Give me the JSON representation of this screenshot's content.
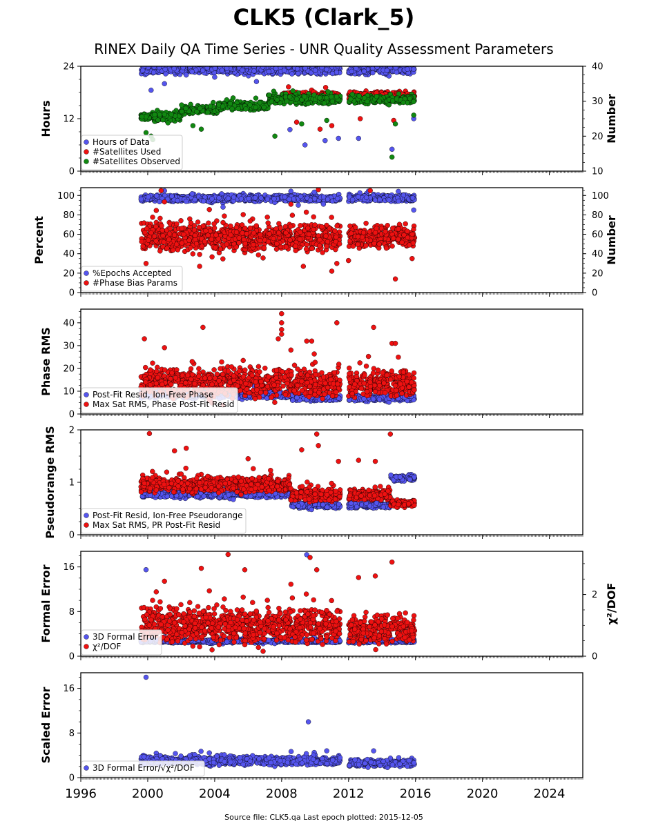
{
  "title": "CLK5 (Clark_5)",
  "subtitle": "RINEX Daily QA Time Series - UNR Quality Assessment Parameters",
  "footer": "Source file: CLK5.qa Last epoch plotted: 2015-12-05",
  "colors": {
    "blue": "#5555ee",
    "red": "#ee1111",
    "green": "#118811"
  },
  "chart_data": [
    {
      "type": "scatter",
      "panel": "hours",
      "ylabel": "Hours",
      "ylabel_right": "Number",
      "ylim": [
        0,
        24
      ],
      "yticks": [
        0,
        12,
        24
      ],
      "ylim_right": [
        10,
        40
      ],
      "yticks_right": [
        10,
        20,
        30,
        40
      ],
      "xlim": [
        1996,
        2026
      ],
      "legend_position": "lower-left",
      "series": [
        {
          "name": "Hours of Data",
          "color": "blue",
          "axis": "left",
          "segments": [
            {
              "x": [
                1999.6,
                2011.5
              ],
              "y_mean": 23.3,
              "spread": 1.0,
              "outliers": [
                [
                  2000.2,
                  18.5
                ],
                [
                  2001.0,
                  20.0
                ],
                [
                  2002.3,
                  22.0
                ],
                [
                  2004.0,
                  21.5
                ],
                [
                  2006.5,
                  20.5
                ],
                [
                  2008.5,
                  9.5
                ],
                [
                  2009.4,
                  6.0
                ],
                [
                  2010.6,
                  7.0
                ],
                [
                  2011.4,
                  7.5
                ],
                [
                  2003.0,
                  15.0
                ]
              ]
            },
            {
              "x": [
                2012.0,
                2015.95
              ],
              "y_mean": 23.3,
              "spread": 1.0,
              "outliers": [
                [
                  2012.6,
                  7.5
                ],
                [
                  2014.6,
                  5.0
                ],
                [
                  2015.9,
                  12.0
                ],
                [
                  2013.7,
                  18.0
                ]
              ]
            }
          ]
        },
        {
          "name": "#Satellites Used",
          "color": "red",
          "axis": "right",
          "segments": [
            {
              "x": [
                2008.0,
                2011.5
              ],
              "y_mean": 31.5,
              "spread": 1.0,
              "outliers": [
                [
                  2008.9,
                  24.0
                ],
                [
                  2010.3,
                  22.0
                ],
                [
                  2011.0,
                  23.0
                ]
              ]
            },
            {
              "x": [
                2012.0,
                2015.95
              ],
              "y_mean": 31.5,
              "spread": 1.0,
              "outliers": [
                [
                  2012.7,
                  25.0
                ],
                [
                  2014.7,
                  24.5
                ]
              ]
            }
          ]
        },
        {
          "name": "#Satellites Observed",
          "color": "green",
          "axis": "right",
          "segments": [
            {
              "x": [
                1999.6,
                2002.0
              ],
              "y_mean": 25.5,
              "spread": 1.2,
              "outliers": [
                [
                  2000.2,
                  20.0
                ],
                [
                  2000.3,
                  19.0
                ],
                [
                  1999.9,
                  21.0
                ]
              ]
            },
            {
              "x": [
                2002.0,
                2004.2
              ],
              "y_mean": 27.5,
              "spread": 1.0,
              "outliers": [
                [
                  2003.2,
                  22.0
                ],
                [
                  2002.7,
                  23.0
                ]
              ]
            },
            {
              "x": [
                2004.2,
                2007.2
              ],
              "y_mean": 28.5,
              "spread": 1.0,
              "outliers": []
            },
            {
              "x": [
                2007.2,
                2011.5
              ],
              "y_mean": 30.5,
              "spread": 1.2,
              "outliers": [
                [
                  2007.6,
                  20.0
                ],
                [
                  2009.2,
                  23.5
                ],
                [
                  2010.7,
                  24.5
                ]
              ]
            },
            {
              "x": [
                2012.0,
                2015.95
              ],
              "y_mean": 30.5,
              "spread": 1.0,
              "outliers": [
                [
                  2014.6,
                  14.0
                ],
                [
                  2014.8,
                  23.5
                ],
                [
                  2015.9,
                  26.0
                ]
              ]
            }
          ]
        }
      ]
    },
    {
      "type": "scatter",
      "panel": "percent",
      "ylabel": "Percent",
      "ylabel_right": "Number",
      "ylim": [
        0,
        108
      ],
      "yticks": [
        0,
        20,
        40,
        60,
        80,
        100
      ],
      "ylim_right": [
        0,
        108
      ],
      "yticks_right": [
        0,
        20,
        40,
        60,
        80,
        100
      ],
      "xlim": [
        1996,
        2026
      ],
      "legend_position": "lower-left",
      "series": [
        {
          "name": "%Epochs Accepted",
          "color": "blue",
          "axis": "left",
          "segments": [
            {
              "x": [
                1999.6,
                2011.5
              ],
              "y_mean": 97,
              "spread": 3,
              "outliers": [
                [
                  2004.5,
                  88
                ],
                [
                  2009.0,
                  90
                ],
                [
                  2010.5,
                  91
                ]
              ]
            },
            {
              "x": [
                2012.0,
                2015.95
              ],
              "y_mean": 97,
              "spread": 3,
              "outliers": [
                [
                  2015.9,
                  85
                ]
              ]
            }
          ]
        },
        {
          "name": "#Phase Bias Params",
          "color": "red",
          "axis": "right",
          "segments": [
            {
              "x": [
                1999.6,
                2011.5
              ],
              "y_mean": 57,
              "spread": 14,
              "outliers": [
                [
                  1999.9,
                  30
                ],
                [
                  2000.8,
                  105
                ],
                [
                  2003.1,
                  27
                ],
                [
                  2009.3,
                  27
                ],
                [
                  2010.2,
                  106
                ],
                [
                  2011.0,
                  22
                ],
                [
                  2011.3,
                  30
                ]
              ]
            },
            {
              "x": [
                2012.0,
                2015.95
              ],
              "y_mean": 57,
              "spread": 10,
              "outliers": [
                [
                  2012.0,
                  33
                ],
                [
                  2013.3,
                  105
                ],
                [
                  2014.8,
                  14
                ],
                [
                  2015.8,
                  35
                ]
              ]
            }
          ]
        }
      ]
    },
    {
      "type": "scatter",
      "panel": "phase",
      "ylabel": "Phase RMS",
      "ylim": [
        0,
        46
      ],
      "yticks": [
        0,
        10,
        20,
        30,
        40
      ],
      "xlim": [
        1996,
        2026
      ],
      "legend_position": "lower-left",
      "series": [
        {
          "name": "Post-Fit Resid, Ion-Free Phase",
          "color": "blue",
          "axis": "left",
          "segments": [
            {
              "x": [
                1999.6,
                2008.6
              ],
              "y_mean": 8.5,
              "spread": 1.5,
              "outliers": []
            },
            {
              "x": [
                2008.6,
                2011.5
              ],
              "y_mean": 7.0,
              "spread": 1.2,
              "outliers": []
            },
            {
              "x": [
                2012.0,
                2015.95
              ],
              "y_mean": 7.0,
              "spread": 1.2,
              "outliers": []
            }
          ]
        },
        {
          "name": "Max Sat RMS, Phase Post-Fit Resid",
          "color": "red",
          "axis": "left",
          "segments": [
            {
              "x": [
                1999.6,
                2011.5
              ],
              "y_mean": 13.5,
              "spread": 6,
              "outliers": [
                [
                  1999.8,
                  33
                ],
                [
                  2003.3,
                  38
                ],
                [
                  2007.8,
                  33
                ],
                [
                  2008.0,
                  44
                ],
                [
                  2008.0,
                  40
                ],
                [
                  2008.0,
                  37
                ],
                [
                  2008.0,
                  35
                ],
                [
                  2009.5,
                  32
                ],
                [
                  2009.8,
                  32
                ],
                [
                  2011.3,
                  40
                ]
              ]
            },
            {
              "x": [
                2012.0,
                2015.95
              ],
              "y_mean": 13.0,
              "spread": 5,
              "outliers": [
                [
                  2013.5,
                  38
                ],
                [
                  2014.6,
                  31
                ],
                [
                  2014.8,
                  31
                ]
              ]
            }
          ]
        }
      ]
    },
    {
      "type": "scatter",
      "panel": "pseudorange",
      "ylabel": "Pseudorange RMS",
      "ylim": [
        0,
        2
      ],
      "yticks": [
        0,
        1,
        2
      ],
      "xlim": [
        1996,
        2026
      ],
      "legend_position": "lower-left",
      "series": [
        {
          "name": "Post-Fit Resid, Ion-Free Pseudorange",
          "color": "blue",
          "axis": "left",
          "segments": [
            {
              "x": [
                1999.6,
                2008.6
              ],
              "y_mean": 0.78,
              "spread": 0.07,
              "outliers": []
            },
            {
              "x": [
                2008.6,
                2011.5
              ],
              "y_mean": 0.56,
              "spread": 0.05,
              "outliers": []
            },
            {
              "x": [
                2012.0,
                2014.5
              ],
              "y_mean": 0.56,
              "spread": 0.05,
              "outliers": []
            },
            {
              "x": [
                2014.5,
                2015.95
              ],
              "y_mean": 1.08,
              "spread": 0.05,
              "outliers": []
            }
          ]
        },
        {
          "name": "Max Sat RMS, PR Post-Fit Resid",
          "color": "red",
          "axis": "left",
          "segments": [
            {
              "x": [
                1999.6,
                2008.5
              ],
              "y_mean": 0.95,
              "spread": 0.13,
              "outliers": [
                [
                  2000.1,
                  1.93
                ],
                [
                  2001.6,
                  1.6
                ],
                [
                  2002.3,
                  1.65
                ],
                [
                  2006.0,
                  1.45
                ],
                [
                  2009.2,
                  1.62
                ],
                [
                  2010.1,
                  1.92
                ],
                [
                  2010.2,
                  1.7
                ],
                [
                  2011.4,
                  1.4
                ]
              ]
            },
            {
              "x": [
                2008.5,
                2011.5
              ],
              "y_mean": 0.76,
              "spread": 0.12,
              "outliers": []
            },
            {
              "x": [
                2012.0,
                2014.5
              ],
              "y_mean": 0.76,
              "spread": 0.1,
              "outliers": [
                [
                  2012.6,
                  1.42
                ],
                [
                  2013.6,
                  1.4
                ],
                [
                  2014.5,
                  1.92
                ]
              ]
            },
            {
              "x": [
                2014.5,
                2015.95
              ],
              "y_mean": 0.6,
              "spread": 0.06,
              "outliers": []
            }
          ]
        }
      ]
    },
    {
      "type": "scatter",
      "panel": "formal",
      "ylabel": "Formal Error",
      "ylabel_right": "χ²/DOF",
      "ylim": [
        0,
        18.8
      ],
      "yticks": [
        0,
        8,
        16
      ],
      "ylim_right": [
        0,
        3.4
      ],
      "yticks_right": [
        0,
        2
      ],
      "xlim": [
        1996,
        2026
      ],
      "legend_position": "lower-left",
      "series": [
        {
          "name": "3D Formal Error",
          "color": "blue",
          "axis": "left",
          "segments": [
            {
              "x": [
                1999.6,
                2011.5
              ],
              "y_mean": 2.7,
              "spread": 0.3,
              "outliers": [
                [
                  1999.9,
                  15.5
                ],
                [
                  2009.5,
                  18.2
                ]
              ]
            },
            {
              "x": [
                2012.0,
                2015.95
              ],
              "y_mean": 2.7,
              "spread": 0.3,
              "outliers": []
            }
          ]
        },
        {
          "name": "χ²/DOF",
          "color": "red",
          "axis": "right",
          "segments": [
            {
              "x": [
                1999.6,
                2011.5
              ],
              "y_mean": 1.0,
              "spread": 0.55,
              "outliers": [
                [
                  2004.8,
                  3.3
                ],
                [
                  2003.2,
                  2.85
                ],
                [
                  2005.8,
                  2.8
                ],
                [
                  2009.7,
                  3.2
                ],
                [
                  2010.1,
                  2.8
                ]
              ]
            },
            {
              "x": [
                2012.0,
                2015.95
              ],
              "y_mean": 0.85,
              "spread": 0.4,
              "outliers": [
                [
                  2012.6,
                  2.55
                ],
                [
                  2013.6,
                  2.6
                ],
                [
                  2014.6,
                  3.05
                ]
              ]
            }
          ]
        }
      ]
    },
    {
      "type": "scatter",
      "panel": "scaled",
      "ylabel": "Scaled Error",
      "ylim": [
        0,
        18.8
      ],
      "yticks": [
        0,
        8,
        16
      ],
      "xlim": [
        1996,
        2026
      ],
      "legend_position": "lower-left",
      "series": [
        {
          "name": "3D Formal Error/√χ²/DOF",
          "color": "blue",
          "axis": "left",
          "segments": [
            {
              "x": [
                1999.6,
                2011.5
              ],
              "y_mean": 3.0,
              "spread": 0.7,
              "outliers": [
                [
                  1999.9,
                  18.0
                ],
                [
                  2009.6,
                  10.0
                ],
                [
                  2010.7,
                  4.8
                ]
              ]
            },
            {
              "x": [
                2012.0,
                2015.95
              ],
              "y_mean": 2.6,
              "spread": 0.6,
              "outliers": [
                [
                  2013.5,
                  4.8
                ]
              ]
            }
          ]
        }
      ]
    }
  ],
  "x_tick_labels": [
    "1996",
    "2000",
    "2004",
    "2008",
    "2012",
    "2016",
    "2020",
    "2024"
  ],
  "x_ticks": [
    1996,
    2000,
    2004,
    2008,
    2012,
    2016,
    2020,
    2024
  ],
  "legends": [
    [
      "Hours of Data",
      "#Satellites Used",
      "#Satellites Observed"
    ],
    [
      "%Epochs Accepted",
      "#Phase Bias Params"
    ],
    [
      "Post-Fit Resid, Ion-Free Phase",
      "Max Sat RMS, Phase Post-Fit Resid"
    ],
    [
      "Post-Fit Resid, Ion-Free Pseudorange",
      "Max Sat RMS, PR Post-Fit Resid"
    ],
    [
      "3D Formal Error",
      "χ²/DOF"
    ],
    [
      "3D Formal Error/√χ²/DOF"
    ]
  ]
}
